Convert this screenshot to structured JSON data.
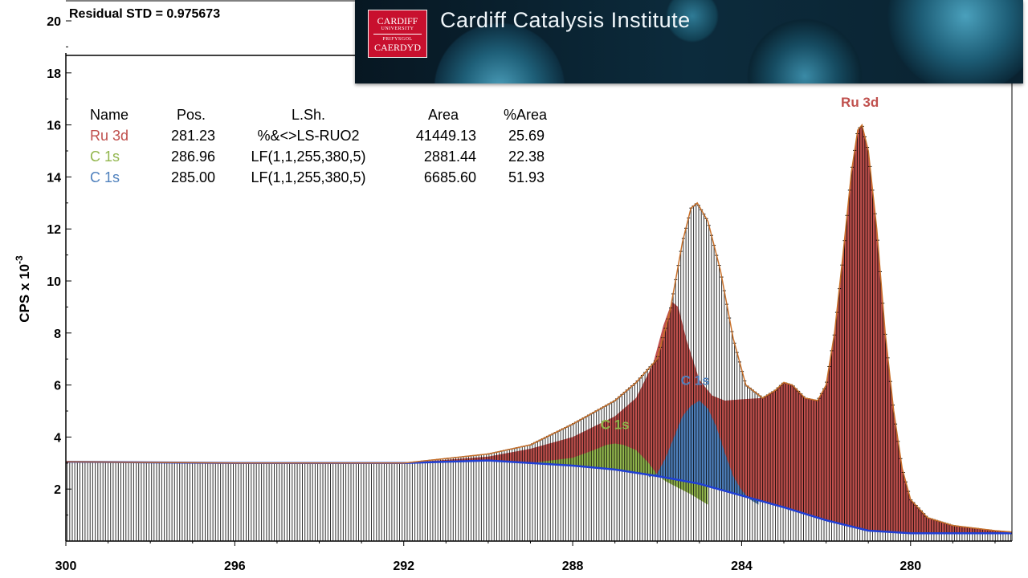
{
  "chart_data": {
    "type": "area",
    "residual_text": "Residual STD = 0.975673",
    "ylabel_main": "CPS x 10",
    "ylabel_exp": "-3",
    "xlim": [
      300,
      277.6
    ],
    "ylim": [
      0,
      20
    ],
    "x_ticks": [
      300,
      296,
      292,
      288,
      284,
      280
    ],
    "y_ticks": [
      2,
      4,
      6,
      8,
      10,
      12,
      14,
      16,
      18,
      20
    ],
    "background": [
      [
        300,
        3.05
      ],
      [
        296,
        3.0
      ],
      [
        292,
        3.0
      ],
      [
        290,
        3.1
      ],
      [
        289,
        3.0
      ],
      [
        288,
        2.9
      ],
      [
        287,
        2.75
      ],
      [
        286,
        2.5
      ],
      [
        285,
        2.2
      ],
      [
        284,
        1.75
      ],
      [
        283,
        1.3
      ],
      [
        282,
        0.8
      ],
      [
        281,
        0.4
      ],
      [
        280,
        0.3
      ],
      [
        277.6,
        0.3
      ]
    ],
    "envelope": [
      [
        300,
        3.05
      ],
      [
        296,
        3.0
      ],
      [
        292,
        3.0
      ],
      [
        290,
        3.35
      ],
      [
        289,
        3.7
      ],
      [
        288,
        4.5
      ],
      [
        287,
        5.4
      ],
      [
        286.5,
        6.1
      ],
      [
        286,
        7.0
      ],
      [
        285.7,
        8.8
      ],
      [
        285.4,
        11.5
      ],
      [
        285.2,
        12.8
      ],
      [
        285.05,
        13.0
      ],
      [
        284.8,
        12.3
      ],
      [
        284.5,
        10.4
      ],
      [
        284.2,
        7.8
      ],
      [
        283.9,
        6.0
      ],
      [
        283.5,
        5.5
      ],
      [
        283.2,
        5.8
      ],
      [
        283.0,
        6.1
      ],
      [
        282.8,
        6.0
      ],
      [
        282.5,
        5.5
      ],
      [
        282.2,
        5.4
      ],
      [
        282.0,
        6.0
      ],
      [
        281.8,
        8.0
      ],
      [
        281.6,
        11.0
      ],
      [
        281.4,
        14.2
      ],
      [
        281.25,
        15.8
      ],
      [
        281.15,
        16.0
      ],
      [
        281.0,
        15.0
      ],
      [
        280.8,
        12.0
      ],
      [
        280.6,
        8.0
      ],
      [
        280.4,
        5.0
      ],
      [
        280.2,
        2.8
      ],
      [
        280.0,
        1.6
      ],
      [
        279.6,
        0.9
      ],
      [
        279.0,
        0.6
      ],
      [
        278.0,
        0.4
      ],
      [
        277.6,
        0.35
      ]
    ],
    "peaks": [
      {
        "name": "Ru 3d",
        "color": "#c0504d",
        "points": [
          [
            300,
            3.05
          ],
          [
            296,
            3.0
          ],
          [
            292,
            3.0
          ],
          [
            290,
            3.25
          ],
          [
            289,
            3.55
          ],
          [
            288,
            4.0
          ],
          [
            287.5,
            4.4
          ],
          [
            287,
            4.8
          ],
          [
            286.5,
            5.5
          ],
          [
            286.1,
            6.8
          ],
          [
            285.85,
            8.3
          ],
          [
            285.65,
            9.2
          ],
          [
            285.5,
            9.0
          ],
          [
            285.3,
            7.7
          ],
          [
            285.0,
            6.2
          ],
          [
            284.7,
            5.6
          ],
          [
            284.4,
            5.4
          ],
          [
            284.0,
            5.45
          ],
          [
            283.5,
            5.5
          ],
          [
            283.2,
            5.8
          ],
          [
            283.0,
            6.1
          ],
          [
            282.8,
            6.0
          ],
          [
            282.5,
            5.5
          ],
          [
            282.2,
            5.4
          ],
          [
            282.0,
            6.0
          ],
          [
            281.8,
            8.0
          ],
          [
            281.6,
            11.0
          ],
          [
            281.4,
            14.2
          ],
          [
            281.25,
            15.8
          ],
          [
            281.15,
            16.0
          ],
          [
            281.0,
            15.0
          ],
          [
            280.8,
            12.0
          ],
          [
            280.6,
            8.0
          ],
          [
            280.4,
            5.0
          ],
          [
            280.2,
            2.8
          ],
          [
            280.0,
            1.6
          ],
          [
            279.6,
            0.9
          ],
          [
            279.0,
            0.6
          ],
          [
            278.0,
            0.4
          ],
          [
            277.6,
            0.35
          ]
        ]
      },
      {
        "name": "C 1s",
        "color": "#92b64d",
        "points": [
          [
            289,
            3.0
          ],
          [
            288,
            3.2
          ],
          [
            287.5,
            3.5
          ],
          [
            287.2,
            3.7
          ],
          [
            287.0,
            3.75
          ],
          [
            286.8,
            3.7
          ],
          [
            286.5,
            3.5
          ],
          [
            286.2,
            3.0
          ],
          [
            286.0,
            2.55
          ],
          [
            285.8,
            2.3
          ],
          [
            285.5,
            2.05
          ],
          [
            285.2,
            1.8
          ],
          [
            285.0,
            1.6
          ],
          [
            284.8,
            1.4
          ]
        ]
      },
      {
        "name": "C 1s",
        "color": "#4f81bd",
        "points": [
          [
            286.2,
            2.45
          ],
          [
            286.0,
            2.6
          ],
          [
            285.8,
            3.2
          ],
          [
            285.6,
            4.0
          ],
          [
            285.4,
            4.8
          ],
          [
            285.2,
            5.2
          ],
          [
            285.0,
            5.4
          ],
          [
            284.8,
            5.1
          ],
          [
            284.6,
            4.4
          ],
          [
            284.4,
            3.4
          ],
          [
            284.2,
            2.5
          ],
          [
            284.0,
            1.95
          ],
          [
            283.8,
            1.6
          ],
          [
            283.6,
            1.4
          ]
        ]
      }
    ],
    "peak_labels": [
      {
        "text": "Ru 3d",
        "x": 281.2,
        "y": 16.7,
        "color": "#c0504d"
      },
      {
        "text": "C 1s",
        "x": 287.0,
        "y": 4.3,
        "color": "#92b64d"
      },
      {
        "text": "C 1s",
        "x": 285.1,
        "y": 6.0,
        "color": "#4f81bd"
      }
    ],
    "table": {
      "headers": [
        "Name",
        "Pos.",
        "L.Sh.",
        "Area",
        "%Area"
      ],
      "rows": [
        {
          "color": "#c0504d",
          "cells": [
            "Ru 3d",
            "281.23",
            "%&<>LS-RUO2",
            "41449.13",
            "25.69"
          ]
        },
        {
          "color": "#92b64d",
          "cells": [
            "C 1s",
            "286.96",
            "LF(1,1,255,380,5)",
            "2881.44",
            "22.38"
          ]
        },
        {
          "color": "#4f81bd",
          "cells": [
            "C 1s",
            "285.00",
            "LF(1,1,255,380,5)",
            "6685.60",
            "51.93"
          ]
        }
      ]
    },
    "colors": {
      "envelope": "#c8702a",
      "background": "#1f3fd6",
      "data": "#000000"
    }
  },
  "banner": {
    "title": "Cardiff Catalysis Institute",
    "logo_line1": "CARDIFF",
    "logo_line2": "UNIVERSITY",
    "logo_line3": "PRIFYSGOL",
    "logo_line4": "CAERDYD"
  }
}
